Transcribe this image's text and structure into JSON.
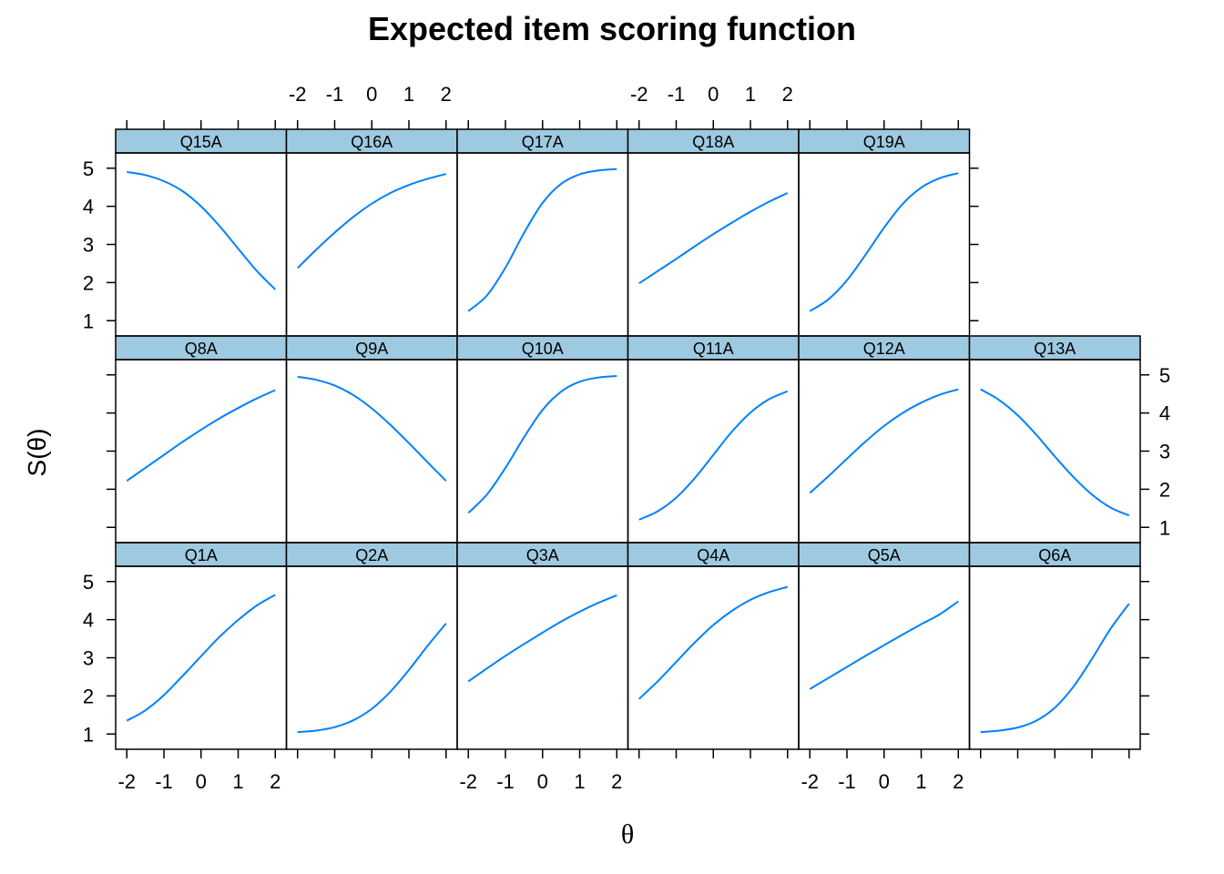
{
  "chart_data": {
    "type": "line",
    "title": "Expected item scoring function",
    "xlabel": "θ",
    "ylabel": "S(θ)",
    "xlim": [
      -2.3,
      2.3
    ],
    "ylim": [
      0.6,
      5.4
    ],
    "x_ticks": [
      "-2",
      "-1",
      "0",
      "1",
      "2"
    ],
    "y_ticks": [
      "1",
      "2",
      "3",
      "4",
      "5"
    ],
    "line_color": "#0080ff",
    "strip_color": "#9ecae1",
    "layout": {
      "columns": 6,
      "rows": 3
    },
    "panels": [
      {
        "name": "Q1A",
        "x": [
          -2,
          -1.5,
          -1,
          -0.5,
          0,
          0.5,
          1,
          1.5,
          2
        ],
        "y": [
          1.35,
          1.62,
          2.02,
          2.52,
          3.04,
          3.55,
          3.99,
          4.37,
          4.65
        ]
      },
      {
        "name": "Q2A",
        "x": [
          -2,
          -1.5,
          -1,
          -0.5,
          0,
          0.5,
          1,
          1.5,
          2
        ],
        "y": [
          1.05,
          1.09,
          1.18,
          1.36,
          1.66,
          2.11,
          2.68,
          3.31,
          3.9
        ]
      },
      {
        "name": "Q3A",
        "x": [
          -2,
          -1.5,
          -1,
          -0.5,
          0,
          0.5,
          1,
          1.5,
          2
        ],
        "y": [
          2.38,
          2.72,
          3.05,
          3.36,
          3.66,
          3.95,
          4.21,
          4.44,
          4.64
        ]
      },
      {
        "name": "Q4A",
        "x": [
          -2,
          -1.5,
          -1,
          -0.5,
          0,
          0.5,
          1,
          1.5,
          2
        ],
        "y": [
          1.92,
          2.38,
          2.89,
          3.4,
          3.86,
          4.23,
          4.52,
          4.72,
          4.86
        ]
      },
      {
        "name": "Q5A",
        "x": [
          -2,
          -1.5,
          -1,
          -0.5,
          0,
          0.5,
          1,
          1.5,
          2
        ],
        "y": [
          2.18,
          2.47,
          2.76,
          3.05,
          3.33,
          3.61,
          3.88,
          4.14,
          4.48
        ]
      },
      {
        "name": "Q6A",
        "x": [
          -2,
          -1.5,
          -1,
          -0.5,
          0,
          0.5,
          1,
          1.5,
          2
        ],
        "y": [
          1.05,
          1.09,
          1.17,
          1.35,
          1.69,
          2.24,
          2.97,
          3.76,
          4.42
        ]
      },
      {
        "name": "Q8A",
        "x": [
          -2,
          -1.5,
          -1,
          -0.5,
          0,
          0.5,
          1,
          1.5,
          2
        ],
        "y": [
          2.22,
          2.56,
          2.9,
          3.24,
          3.56,
          3.86,
          4.13,
          4.38,
          4.6
        ]
      },
      {
        "name": "Q9A",
        "x": [
          -2,
          -1.5,
          -1,
          -0.5,
          0,
          0.5,
          1,
          1.5,
          2
        ],
        "y": [
          4.95,
          4.87,
          4.72,
          4.47,
          4.12,
          3.69,
          3.21,
          2.71,
          2.22
        ]
      },
      {
        "name": "Q10A",
        "x": [
          -2,
          -1.5,
          -1,
          -0.5,
          0,
          0.5,
          1,
          1.5,
          2
        ],
        "y": [
          1.38,
          1.86,
          2.56,
          3.36,
          4.08,
          4.56,
          4.82,
          4.93,
          4.97
        ]
      },
      {
        "name": "Q11A",
        "x": [
          -2,
          -1.5,
          -1,
          -0.5,
          0,
          0.5,
          1,
          1.5,
          2
        ],
        "y": [
          1.2,
          1.42,
          1.78,
          2.29,
          2.9,
          3.51,
          4.01,
          4.36,
          4.57
        ]
      },
      {
        "name": "Q12A",
        "x": [
          -2,
          -1.5,
          -1,
          -0.5,
          0,
          0.5,
          1,
          1.5,
          2
        ],
        "y": [
          1.9,
          2.34,
          2.8,
          3.25,
          3.66,
          4.0,
          4.27,
          4.48,
          4.62
        ]
      },
      {
        "name": "Q13A",
        "x": [
          -2,
          -1.5,
          -1,
          -0.5,
          0,
          0.5,
          1,
          1.5,
          2
        ],
        "y": [
          4.62,
          4.34,
          3.94,
          3.43,
          2.86,
          2.32,
          1.86,
          1.52,
          1.31
        ]
      },
      {
        "name": "Q15A",
        "x": [
          -2,
          -1.5,
          -1,
          -0.5,
          0,
          0.5,
          1,
          1.5,
          2
        ],
        "y": [
          4.9,
          4.82,
          4.66,
          4.4,
          4.0,
          3.48,
          2.89,
          2.31,
          1.82
        ]
      },
      {
        "name": "Q16A",
        "x": [
          -2,
          -1.5,
          -1,
          -0.5,
          0,
          0.5,
          1,
          1.5,
          2
        ],
        "y": [
          2.38,
          2.86,
          3.31,
          3.72,
          4.07,
          4.35,
          4.56,
          4.72,
          4.85
        ]
      },
      {
        "name": "Q17A",
        "x": [
          -2,
          -1.5,
          -1,
          -0.5,
          0,
          0.5,
          1,
          1.5,
          2
        ],
        "y": [
          1.25,
          1.66,
          2.39,
          3.3,
          4.09,
          4.59,
          4.84,
          4.94,
          4.98
        ]
      },
      {
        "name": "Q18A",
        "x": [
          -2,
          -1.5,
          -1,
          -0.5,
          0,
          0.5,
          1,
          1.5,
          2
        ],
        "y": [
          1.98,
          2.3,
          2.62,
          2.95,
          3.27,
          3.57,
          3.86,
          4.12,
          4.35
        ]
      },
      {
        "name": "Q19A",
        "x": [
          -2,
          -1.5,
          -1,
          -0.5,
          0,
          0.5,
          1,
          1.5,
          2
        ],
        "y": [
          1.25,
          1.56,
          2.06,
          2.73,
          3.44,
          4.06,
          4.49,
          4.74,
          4.87
        ]
      }
    ]
  }
}
